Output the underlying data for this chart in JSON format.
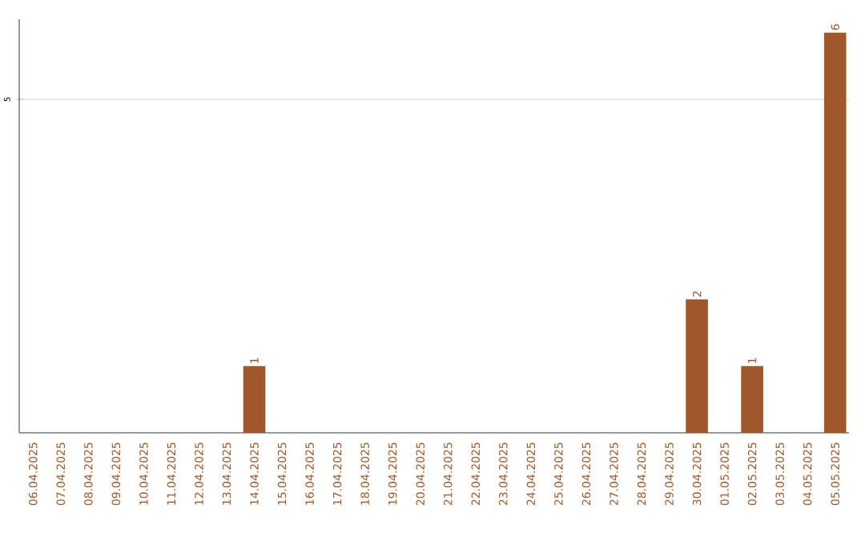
{
  "chart_data": {
    "type": "bar",
    "categories": [
      "06.04.2025",
      "07.04.2025",
      "08.04.2025",
      "09.04.2025",
      "10.04.2025",
      "11.04.2025",
      "12.04.2025",
      "13.04.2025",
      "14.04.2025",
      "15.04.2025",
      "16.04.2025",
      "17.04.2025",
      "18.04.2025",
      "19.04.2025",
      "20.04.2025",
      "21.04.2025",
      "22.04.2025",
      "23.04.2025",
      "24.04.2025",
      "25.04.2025",
      "26.04.2025",
      "27.04.2025",
      "28.04.2025",
      "29.04.2025",
      "30.04.2025",
      "01.05.2025",
      "02.05.2025",
      "03.05.2025",
      "04.05.2025",
      "05.05.2025"
    ],
    "values": [
      0,
      0,
      0,
      0,
      0,
      0,
      0,
      0,
      1,
      0,
      0,
      0,
      0,
      0,
      0,
      0,
      0,
      0,
      0,
      0,
      0,
      0,
      0,
      0,
      2,
      0,
      1,
      0,
      0,
      6
    ],
    "value_labels": [
      null,
      null,
      null,
      null,
      null,
      null,
      null,
      null,
      "1",
      null,
      null,
      null,
      null,
      null,
      null,
      null,
      null,
      null,
      null,
      null,
      null,
      null,
      null,
      null,
      "2",
      null,
      "1",
      null,
      null,
      "6"
    ],
    "color": "#a0582a",
    "ylim": [
      0,
      6.2
    ],
    "yticks": [
      5
    ],
    "grid": "y"
  }
}
